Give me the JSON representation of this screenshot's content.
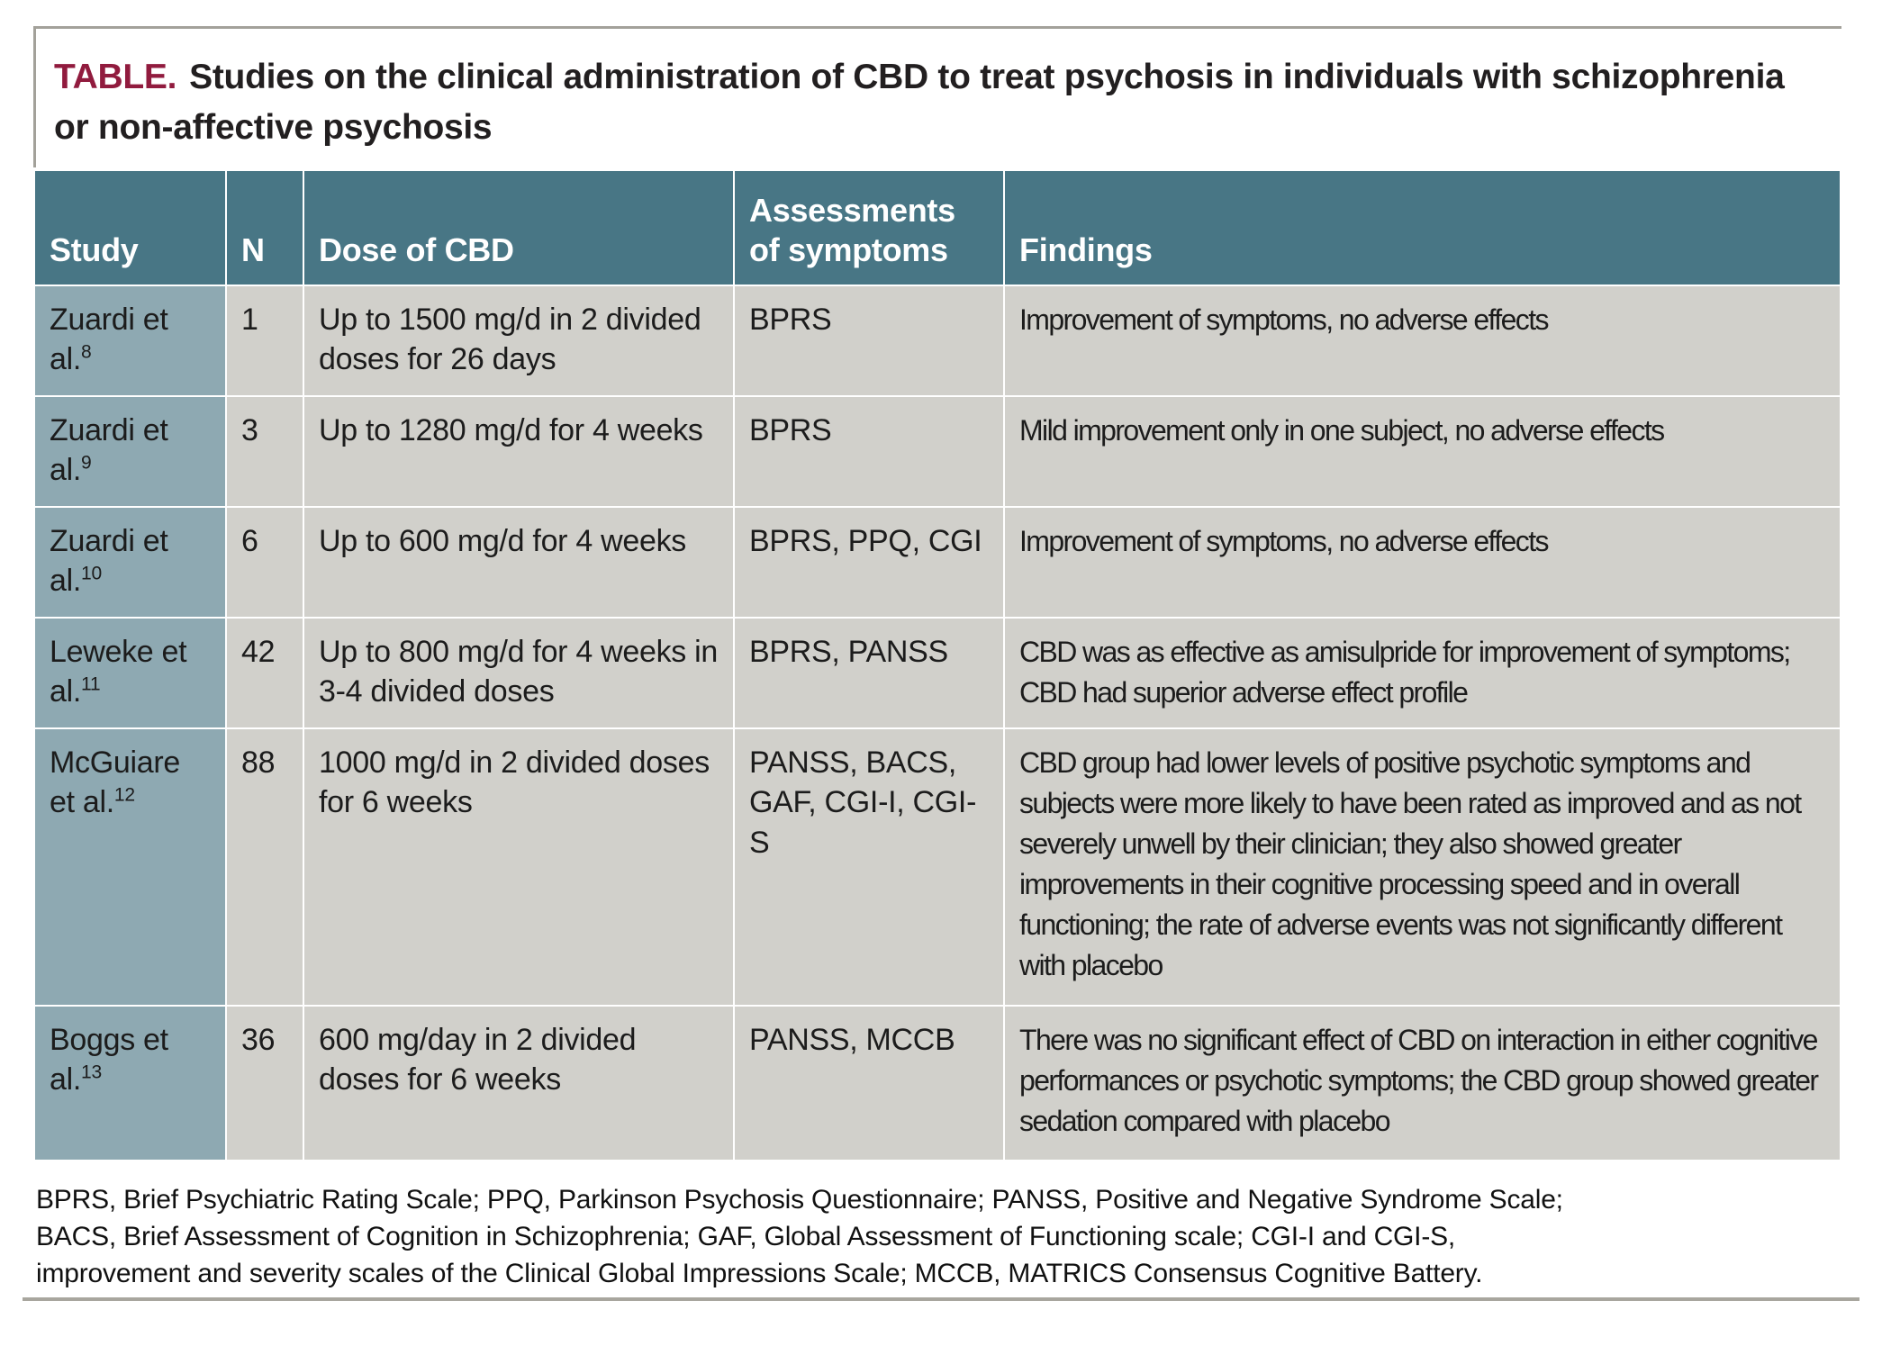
{
  "title": {
    "tag": "TABLE.",
    "text": "Studies on the clinical administration of CBD to treat psychosis in individuals with schizophrenia or non-affective psychosis"
  },
  "table": {
    "columns": [
      "Study",
      "N",
      "Dose of CBD",
      "Assessments of symptoms",
      "Findings"
    ],
    "rows": [
      {
        "study": "Zuardi et al.",
        "ref": "8",
        "n": "1",
        "dose": "Up to 1500 mg/d in 2 divided doses for 26 days",
        "assessments": "BPRS",
        "findings": "Improvement of symptoms, no adverse effects"
      },
      {
        "study": "Zuardi et al.",
        "ref": "9",
        "n": "3",
        "dose": "Up to 1280 mg/d for 4 weeks",
        "assessments": "BPRS",
        "findings": "Mild improvement only in one subject, no adverse effects"
      },
      {
        "study": "Zuardi et al.",
        "ref": "10",
        "n": "6",
        "dose": "Up to 600 mg/d for 4 weeks",
        "assessments": "BPRS, PPQ, CGI",
        "findings": "Improvement of symptoms, no adverse effects"
      },
      {
        "study": "Leweke et al.",
        "ref": "11",
        "n": "42",
        "dose": "Up to 800 mg/d for 4 weeks in 3-4 divided doses",
        "assessments": "BPRS, PANSS",
        "findings": "CBD was as effective as amisulpride for improvement of symptoms; CBD had superior adverse effect profile"
      },
      {
        "study": "McGuiare et al.",
        "ref": "12",
        "n": "88",
        "dose": "1000 mg/d in 2 divided doses for 6 weeks",
        "assessments": "PANSS, BACS, GAF, CGI-I, CGI-S",
        "findings": "CBD group had lower levels of positive psychotic symptoms and subjects were more likely to have been rated as improved and as not severely unwell by their clinician; they also showed greater improvements in their cognitive processing speed and in overall functioning; the rate of adverse events was not significantly different with placebo"
      },
      {
        "study": "Boggs et al.",
        "ref": "13",
        "n": "36",
        "dose": "600 mg/day in 2 divided doses for 6 weeks",
        "assessments": "PANSS, MCCB",
        "findings": "There was no significant effect of CBD on interaction in either cognitive performances or psychotic symptoms; the CBD group showed greater sedation compared with placebo"
      }
    ]
  },
  "footnote": {
    "lines": [
      "BPRS, Brief Psychiatric Rating Scale; PPQ, Parkinson Psychosis Questionnaire; PANSS, Positive and Negative Syndrome Scale;",
      "BACS, Brief Assessment of Cognition in Schizophrenia; GAF, Global Assessment of Functioning scale; CGI-I and CGI-S,",
      "improvement and severity scales of the Clinical Global Impressions Scale; MCCB, MATRICS Consensus Cognitive Battery."
    ]
  },
  "colors": {
    "header_bg": "#487685",
    "study_column_bg": "#8ea9b2",
    "cell_bg": "#d1d0cb",
    "title_tag": "#911b3e",
    "rule": "#a8a69e"
  }
}
